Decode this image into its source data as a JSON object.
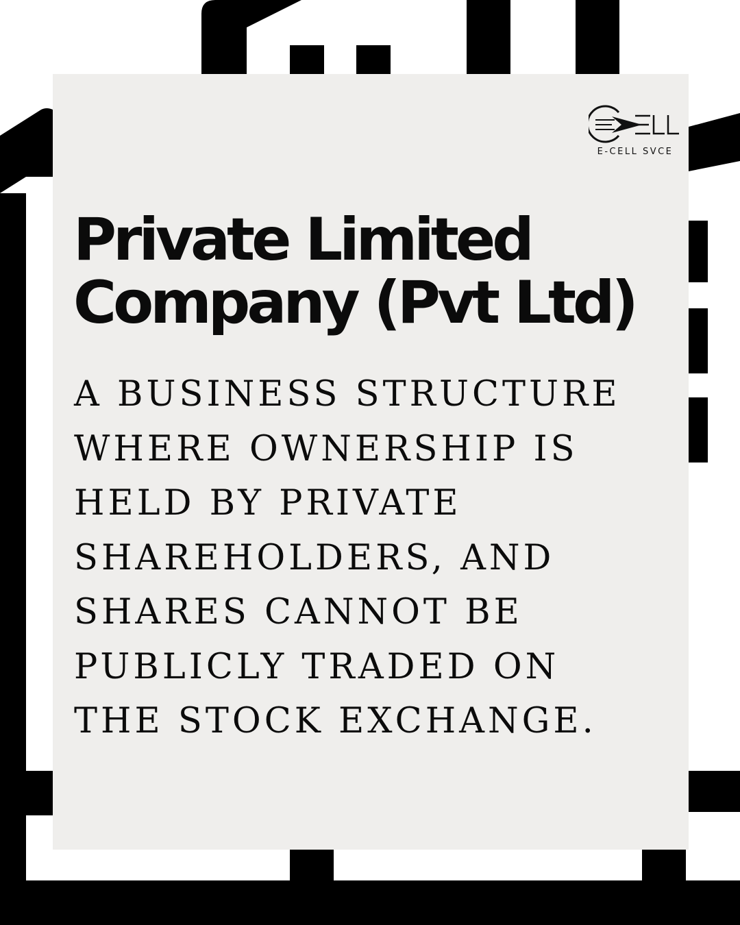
{
  "logo": {
    "caption": "E-CELL SVCE",
    "icon": "e-cell-arrow-logo"
  },
  "title": {
    "lines": [
      "Private Limited",
      "Company (Pvt Ltd)"
    ]
  },
  "description": {
    "lines": [
      "A BUSINESS STRUCTURE",
      "WHERE OWNERSHIP IS",
      "HELD BY PRIVATE",
      "SHAREHOLDERS, AND",
      "SHARES CANNOT BE",
      "PUBLICLY TRADED ON",
      "THE STOCK EXCHANGE."
    ]
  },
  "colors": {
    "background": "#ffffff",
    "card": "#efeeec",
    "ink": "#0b0b0b"
  }
}
